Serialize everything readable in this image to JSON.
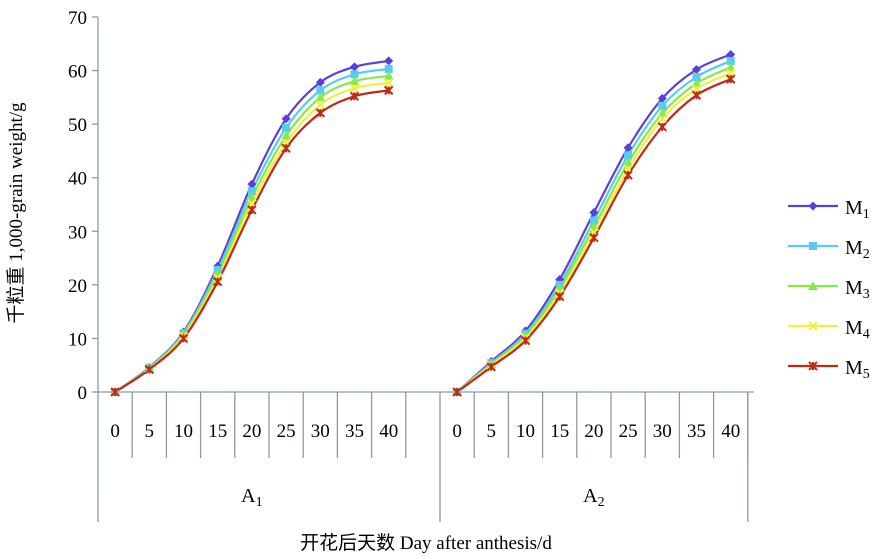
{
  "chart_data": {
    "type": "line",
    "xlabel": "开花后天数 Day after anthesis/d",
    "ylabel": "千粒重 1,000-grain weight/g",
    "ylim": [
      0,
      70
    ],
    "yticks": [
      0,
      10,
      20,
      30,
      40,
      50,
      60,
      70
    ],
    "grid": false,
    "legend_position": "right",
    "groups": [
      {
        "label": "A",
        "sub": "1"
      },
      {
        "label": "A",
        "sub": "2"
      }
    ],
    "categories": [
      "0",
      "5",
      "10",
      "15",
      "20",
      "25",
      "30",
      "35",
      "40"
    ],
    "series": [
      {
        "name": "M",
        "sub": "1",
        "color": "#5b3fd8",
        "marker": "diamond",
        "values": [
          [
            0,
            4.6,
            11.2,
            23.5,
            38.8,
            51.0,
            57.8,
            60.7,
            61.8
          ],
          [
            0,
            5.7,
            11.4,
            21.0,
            33.5,
            45.6,
            54.8,
            60.2,
            63.0
          ]
        ]
      },
      {
        "name": "M",
        "sub": "2",
        "color": "#55ccf0",
        "marker": "square",
        "values": [
          [
            0,
            4.5,
            11.0,
            22.8,
            37.5,
            49.3,
            56.3,
            59.3,
            60.3
          ],
          [
            0,
            5.4,
            10.9,
            20.0,
            32.0,
            44.2,
            53.4,
            58.8,
            61.8
          ]
        ]
      },
      {
        "name": "M",
        "sub": "3",
        "color": "#88e848",
        "marker": "triangle",
        "values": [
          [
            0,
            4.4,
            10.7,
            22.0,
            36.3,
            47.8,
            55.0,
            58.0,
            59.0
          ],
          [
            0,
            5.2,
            10.5,
            19.3,
            30.8,
            42.8,
            52.0,
            57.6,
            60.6
          ]
        ]
      },
      {
        "name": "M",
        "sub": "4",
        "color": "#f0f040",
        "marker": "x",
        "values": [
          [
            0,
            4.3,
            10.4,
            21.3,
            35.2,
            46.5,
            53.6,
            56.7,
            57.7
          ],
          [
            0,
            5.0,
            10.1,
            18.5,
            29.8,
            41.6,
            51.0,
            56.6,
            59.5
          ]
        ]
      },
      {
        "name": "M",
        "sub": "5",
        "color": "#c02818",
        "marker": "star",
        "values": [
          [
            0,
            4.2,
            10.0,
            20.6,
            34.0,
            45.5,
            52.1,
            55.2,
            56.3
          ],
          [
            0,
            4.7,
            9.6,
            17.8,
            28.8,
            40.5,
            49.5,
            55.4,
            58.4
          ]
        ]
      }
    ]
  }
}
